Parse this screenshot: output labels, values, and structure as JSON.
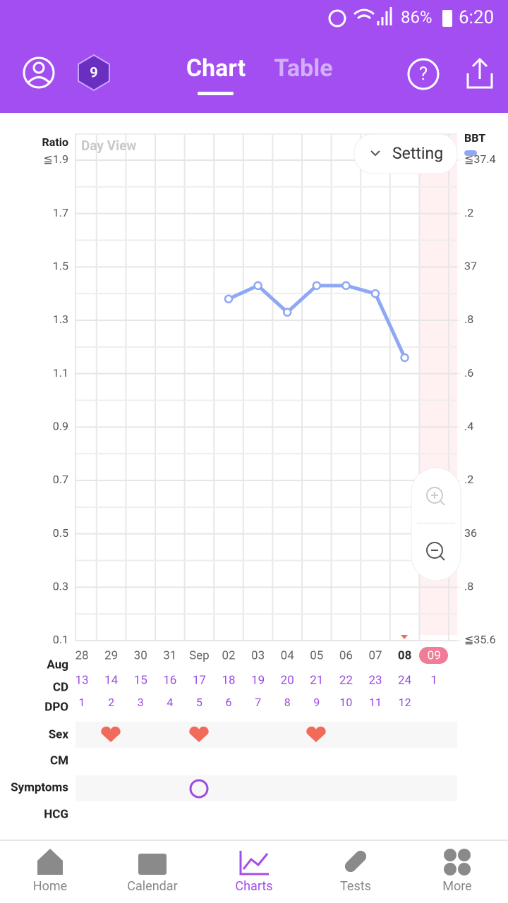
{
  "status_bar": {
    "battery": "86%",
    "time": "6:20"
  },
  "header": {
    "tabs": [
      "Chart",
      "Table"
    ]
  },
  "setting": "Setting",
  "chart_data": {
    "type": "line",
    "y_label": "Ratio",
    "y2_label": "BBT",
    "view_label": "Day View",
    "month_label": "Aug",
    "categories": [
      "28",
      "29",
      "30",
      "31",
      "Sep",
      "02",
      "03",
      "04",
      "05",
      "06",
      "07",
      "08",
      "09"
    ],
    "series": [
      {
        "color": "#8ea8f4",
        "values": [
          null,
          null,
          null,
          null,
          null,
          1.38,
          1.43,
          1.33,
          1.43,
          1.43,
          1.4,
          1.16,
          null
        ]
      }
    ],
    "ylim": [
      0.1,
      1.9
    ],
    "yticks": [
      {
        "value": 1.9,
        "label": "≦1.9"
      },
      1.7,
      1.5,
      1.3,
      1.1,
      0.9,
      0.7,
      0.5,
      0.3,
      0.1
    ],
    "y2lim": [
      35.6,
      37.4
    ],
    "y2ticks": [
      {
        "value": 37.4,
        "label": "≦37.4"
      },
      {
        "value": 37.2,
        "label": ".2"
      },
      37,
      {
        "value": 36.8,
        "label": ".8"
      },
      {
        "value": 36.6,
        "label": ".6"
      },
      {
        "value": 36.4,
        "label": ".4"
      },
      {
        "value": 36.2,
        "label": ".2"
      },
      36,
      {
        "value": 35.8,
        "label": ".8"
      },
      {
        "value": 35.6,
        "label": "≦35.6"
      }
    ],
    "grid": true
  },
  "rows": {
    "labels": [
      "CD",
      "DPO",
      "Sex",
      "CM",
      "Symptoms",
      "HCG"
    ],
    "cd": [
      13,
      14,
      15,
      16,
      17,
      18,
      19,
      20,
      21,
      22,
      23,
      24,
      1
    ],
    "dpo": [
      1,
      2,
      3,
      4,
      5,
      6,
      7,
      8,
      9,
      10,
      11,
      12,
      null
    ]
  },
  "nav": [
    "Home",
    "Calendar",
    "Charts",
    "Tests",
    "More"
  ]
}
